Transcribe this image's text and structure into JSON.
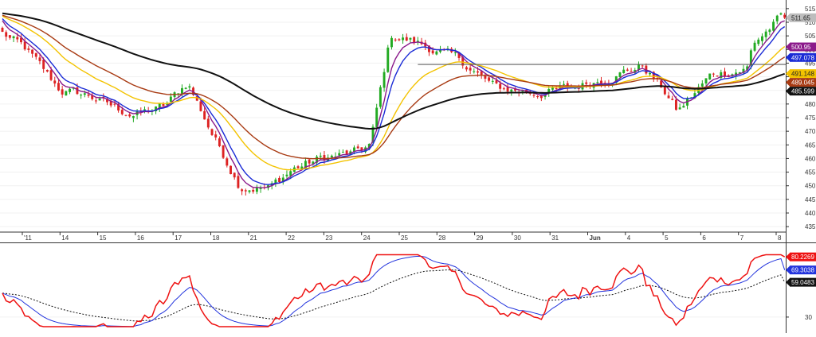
{
  "chart_data": [
    {
      "type": "candlestick",
      "panel": "price",
      "ylim": [
        433,
        517
      ],
      "y_ticks": [
        435,
        440,
        445,
        450,
        455,
        460,
        465,
        470,
        475,
        480,
        485,
        490,
        495,
        500,
        505,
        510,
        515
      ],
      "y_tick_labels": [
        "435",
        "440",
        "445",
        "450",
        "455",
        "460",
        "465",
        "470",
        "475",
        "480",
        "485",
        "490",
        "495",
        "500",
        "505",
        "510",
        "515"
      ],
      "x_tick_labels": [
        "'11",
        "14",
        "15",
        "16",
        "17",
        "18",
        "21",
        "22",
        "23",
        "24",
        "25",
        "28",
        "29",
        "30",
        "31",
        "Jun",
        "4",
        "5",
        "6",
        "7",
        "8"
      ],
      "n_bars": 210,
      "close_knots": [
        [
          0,
          506
        ],
        [
          8,
          500
        ],
        [
          20,
          485
        ],
        [
          30,
          483
        ],
        [
          40,
          478
        ],
        [
          46,
          476
        ],
        [
          56,
          479
        ],
        [
          64,
          488
        ],
        [
          72,
          470
        ],
        [
          82,
          450
        ],
        [
          92,
          449
        ],
        [
          100,
          456
        ],
        [
          110,
          460
        ],
        [
          122,
          462
        ],
        [
          127,
          465
        ],
        [
          134,
          505
        ],
        [
          142,
          503
        ],
        [
          158,
          496
        ],
        [
          170,
          486
        ],
        [
          185,
          484
        ],
        [
          197,
          486
        ],
        [
          209,
          490
        ],
        [
          221,
          494
        ],
        [
          229,
          484
        ],
        [
          233,
          477
        ],
        [
          245,
          491
        ],
        [
          257,
          493
        ],
        [
          259,
          502
        ],
        [
          270,
          513
        ]
      ],
      "horizontal_line": 494.5,
      "series": [
        {
          "name": "",
          "color": "#8b1a8b",
          "period": 5
        },
        {
          "name": "",
          "color": "#1a2bd6",
          "period": 8
        },
        {
          "name": "",
          "color": "#f3c300",
          "period": 21
        },
        {
          "name": "",
          "color": "#a83a12",
          "period": 34
        },
        {
          "name": "",
          "color": "#111111",
          "period": 89
        }
      ],
      "price_labels": [
        {
          "value": 511.65,
          "text": "511.65",
          "color": "#bdbdbd",
          "text_color": "#222222"
        },
        {
          "value": 500.95,
          "text": "500.95",
          "color": "#8b1a8b",
          "text_color": "#ffffff"
        },
        {
          "value": 497.078,
          "text": "497.078",
          "color": "#1a2bd6",
          "text_color": "#ffffff"
        },
        {
          "value": 491.148,
          "text": "491.148",
          "color": "#f3c300",
          "text_color": "#222222"
        },
        {
          "value": 489.045,
          "text": "489.045",
          "color": "#a83a12",
          "text_color": "#ffffff"
        },
        {
          "value": 485.599,
          "text": "485.599",
          "color": "#111111",
          "text_color": "#ffffff"
        }
      ],
      "up_color": "#22aa22",
      "down_color": "#dd2222"
    },
    {
      "type": "line",
      "panel": "oscillator",
      "ylim": [
        20,
        85
      ],
      "y_ticks": [
        30
      ],
      "y_tick_labels": [
        "30"
      ],
      "series": [
        {
          "name": "",
          "color": "#ee1111",
          "role": "main",
          "last": 80.2269
        },
        {
          "name": "",
          "color": "#2233dd",
          "role": "signal",
          "last": 69.3038
        },
        {
          "name": "",
          "color": "#111111",
          "role": "slow",
          "dashed": true,
          "last": 59.0483
        }
      ],
      "value_labels": [
        {
          "value": 80.2269,
          "text": "80.2269",
          "color": "#ee1111",
          "text_color": "#ffffff"
        },
        {
          "value": 69.3038,
          "text": "69.3038",
          "color": "#2233dd",
          "text_color": "#ffffff"
        },
        {
          "value": 59.0483,
          "text": "59.0483",
          "color": "#111111",
          "text_color": "#ffffff"
        }
      ]
    }
  ]
}
